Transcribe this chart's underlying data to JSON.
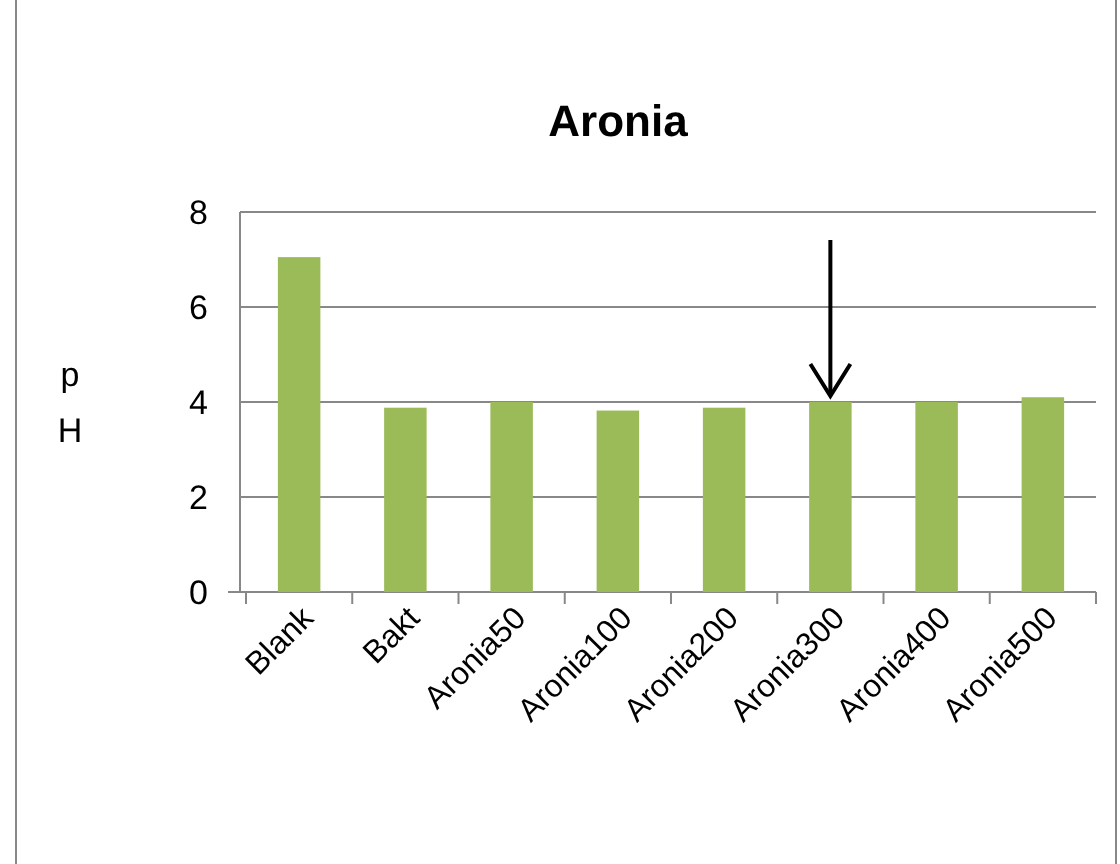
{
  "chart_data": {
    "type": "bar",
    "title": "Aronia",
    "ylabel": "pH",
    "categories": [
      "Blank",
      "Bakt",
      "Aronia50",
      "Aronia100",
      "Aronia200",
      "Aronia300",
      "Aronia400",
      "Aronia500"
    ],
    "values": [
      7.05,
      3.88,
      4.0,
      3.82,
      3.88,
      4.0,
      4.0,
      4.1
    ],
    "color": "#9bbb59",
    "ylim": [
      0,
      8
    ],
    "yticks": [
      0,
      2,
      4,
      6,
      8
    ],
    "grid": "y"
  }
}
